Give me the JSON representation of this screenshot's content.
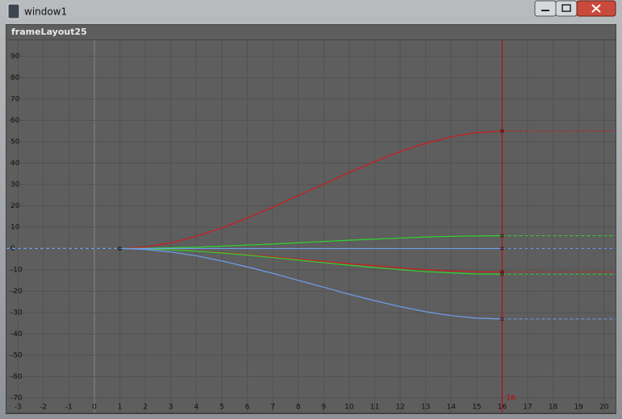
{
  "window": {
    "title": "window1"
  },
  "panel": {
    "title": "frameLayout25"
  },
  "chart_data": {
    "type": "line",
    "x": [
      1,
      2,
      3,
      4,
      5,
      6,
      7,
      8,
      9,
      10,
      11,
      12,
      13,
      14,
      15,
      16
    ],
    "series": [
      {
        "color": "#d21a1a",
        "values": [
          0,
          0.7,
          2.7,
          5.7,
          9.6,
          14.3,
          19.4,
          24.8,
          30.2,
          35.6,
          40.7,
          45.4,
          49.3,
          52.3,
          54.3,
          55
        ]
      },
      {
        "color": "#2fd42f",
        "values": [
          0,
          0.1,
          0.3,
          0.6,
          1.1,
          1.6,
          2.1,
          2.7,
          3.3,
          3.9,
          4.4,
          4.9,
          5.4,
          5.7,
          5.9,
          6
        ]
      },
      {
        "color": "#d21a1a",
        "values": [
          0,
          -0.1,
          -0.5,
          -1.1,
          -1.9,
          -2.9,
          -3.9,
          -5,
          -6,
          -7.1,
          -8.1,
          -9.1,
          -9.9,
          -10.5,
          -10.9,
          -11
        ]
      },
      {
        "color": "#2fd42f",
        "values": [
          0,
          -0.1,
          -0.6,
          -1.2,
          -2.1,
          -3.1,
          -4.2,
          -5.4,
          -6.6,
          -7.8,
          -8.9,
          -9.9,
          -10.8,
          -11.4,
          -11.9,
          -12
        ]
      },
      {
        "color": "#6f9ff0",
        "values": [
          0,
          -0.4,
          -1.6,
          -3.4,
          -5.8,
          -8.6,
          -11.6,
          -14.9,
          -18.1,
          -21.4,
          -24.4,
          -27.2,
          -29.6,
          -31.4,
          -32.6,
          -33
        ]
      },
      {
        "color": "#6f9ff0",
        "values": [
          0,
          0,
          0,
          0,
          0,
          0,
          0,
          0,
          0,
          0,
          0,
          0,
          0,
          0,
          0,
          0
        ]
      }
    ],
    "xlim": [
      -3.45,
      20.45
    ],
    "ylim": [
      -76.8,
      97.5
    ],
    "xticks": [
      -3,
      -2,
      -1,
      0,
      1,
      2,
      3,
      4,
      5,
      6,
      7,
      8,
      9,
      10,
      11,
      12,
      13,
      14,
      15,
      16,
      17,
      18,
      19,
      20
    ],
    "yticks": [
      -70,
      -60,
      -50,
      -40,
      -30,
      -20,
      -10,
      0,
      10,
      20,
      30,
      40,
      50,
      60,
      70,
      80,
      90
    ],
    "grid": true,
    "current_time": 16,
    "current_time_color": "#d40000"
  }
}
